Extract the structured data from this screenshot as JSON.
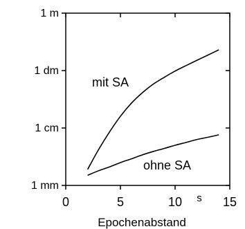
{
  "chart_data": {
    "type": "line",
    "xlabel": "Epochenabstand",
    "x_unit": "s",
    "xlim": [
      0,
      15
    ],
    "y_scale": "log",
    "y_unit": "m",
    "ylim": [
      0.001,
      1
    ],
    "x_ticks": [
      {
        "value": 0,
        "label": "0"
      },
      {
        "value": 5,
        "label": "5"
      },
      {
        "value": 10,
        "label": "10"
      },
      {
        "value": 15,
        "label": "15"
      }
    ],
    "y_ticks": [
      {
        "value": 1,
        "label": "1 m"
      },
      {
        "value": 0.1,
        "label": "1 dm"
      },
      {
        "value": 0.01,
        "label": "1 cm"
      },
      {
        "value": 0.001,
        "label": "1 mm"
      }
    ],
    "series": [
      {
        "name": "mit SA",
        "x": [
          2,
          3,
          4,
          5,
          6,
          7,
          8,
          9,
          10,
          11,
          12,
          13,
          14
        ],
        "y": [
          0.0019,
          0.0042,
          0.0085,
          0.016,
          0.027,
          0.041,
          0.058,
          0.076,
          0.098,
          0.122,
          0.151,
          0.186,
          0.23
        ]
      },
      {
        "name": "ohne SA",
        "x": [
          2,
          3,
          4,
          5,
          6,
          7,
          8,
          9,
          10,
          11,
          12,
          13,
          14
        ],
        "y": [
          0.0015,
          0.0018,
          0.0021,
          0.0025,
          0.0029,
          0.0034,
          0.0039,
          0.0044,
          0.005,
          0.0056,
          0.0063,
          0.0069,
          0.0076
        ]
      }
    ]
  }
}
